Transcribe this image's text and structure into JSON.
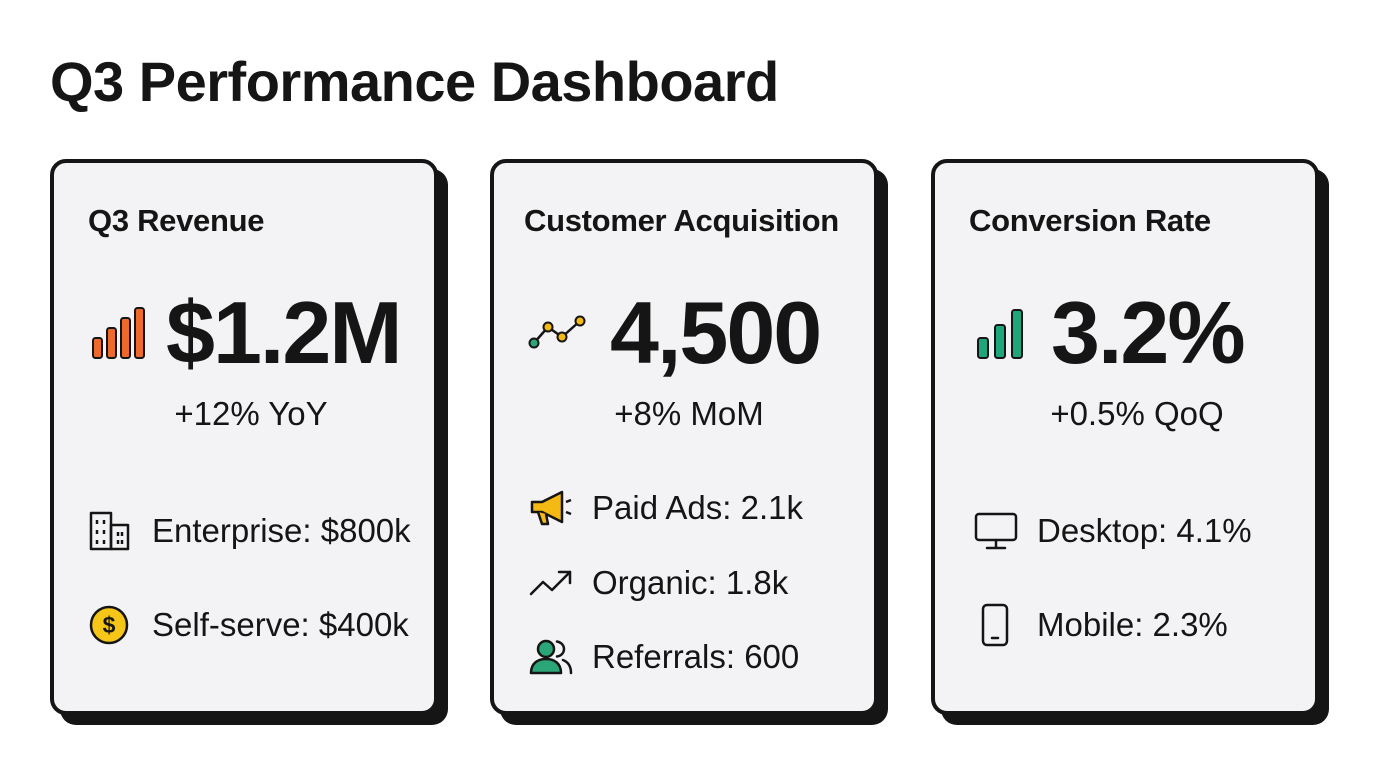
{
  "dashboard": {
    "title": "Q3 Performance Dashboard"
  },
  "cards": [
    {
      "title": "Q3 Revenue",
      "value": "$1.2M",
      "change": "+12% YoY",
      "icon": "bar-chart-icon",
      "accent": "#ee6a2c",
      "breakdown": [
        {
          "icon": "building-icon",
          "label": "Enterprise: $800k"
        },
        {
          "icon": "dollar-coin-icon",
          "label": "Self-serve: $400k"
        }
      ]
    },
    {
      "title": "Customer Acquisition",
      "value": "4,500",
      "change": "+8% MoM",
      "icon": "line-chart-icon",
      "accent": "#2aa679",
      "breakdown": [
        {
          "icon": "megaphone-icon",
          "label": "Paid Ads: 2.1k"
        },
        {
          "icon": "trending-up-icon",
          "label": "Organic: 1.8k"
        },
        {
          "icon": "users-icon",
          "label": "Referrals: 600"
        }
      ]
    },
    {
      "title": "Conversion Rate",
      "value": "3.2%",
      "change": "+0.5% QoQ",
      "icon": "bar-chart-icon",
      "accent": "#1fa57a",
      "breakdown": [
        {
          "icon": "desktop-icon",
          "label": "Desktop: 4.1%"
        },
        {
          "icon": "mobile-icon",
          "label": "Mobile: 2.3%"
        }
      ]
    }
  ],
  "colors": {
    "text": "#151515",
    "card_background": "#f3f3f5",
    "revenue_accent": "#ee6a2c",
    "acquisition_accent": "#2aa679",
    "conversion_accent": "#1fa57a",
    "coin_yellow": "#f5c518",
    "megaphone_yellow": "#f5b914"
  }
}
